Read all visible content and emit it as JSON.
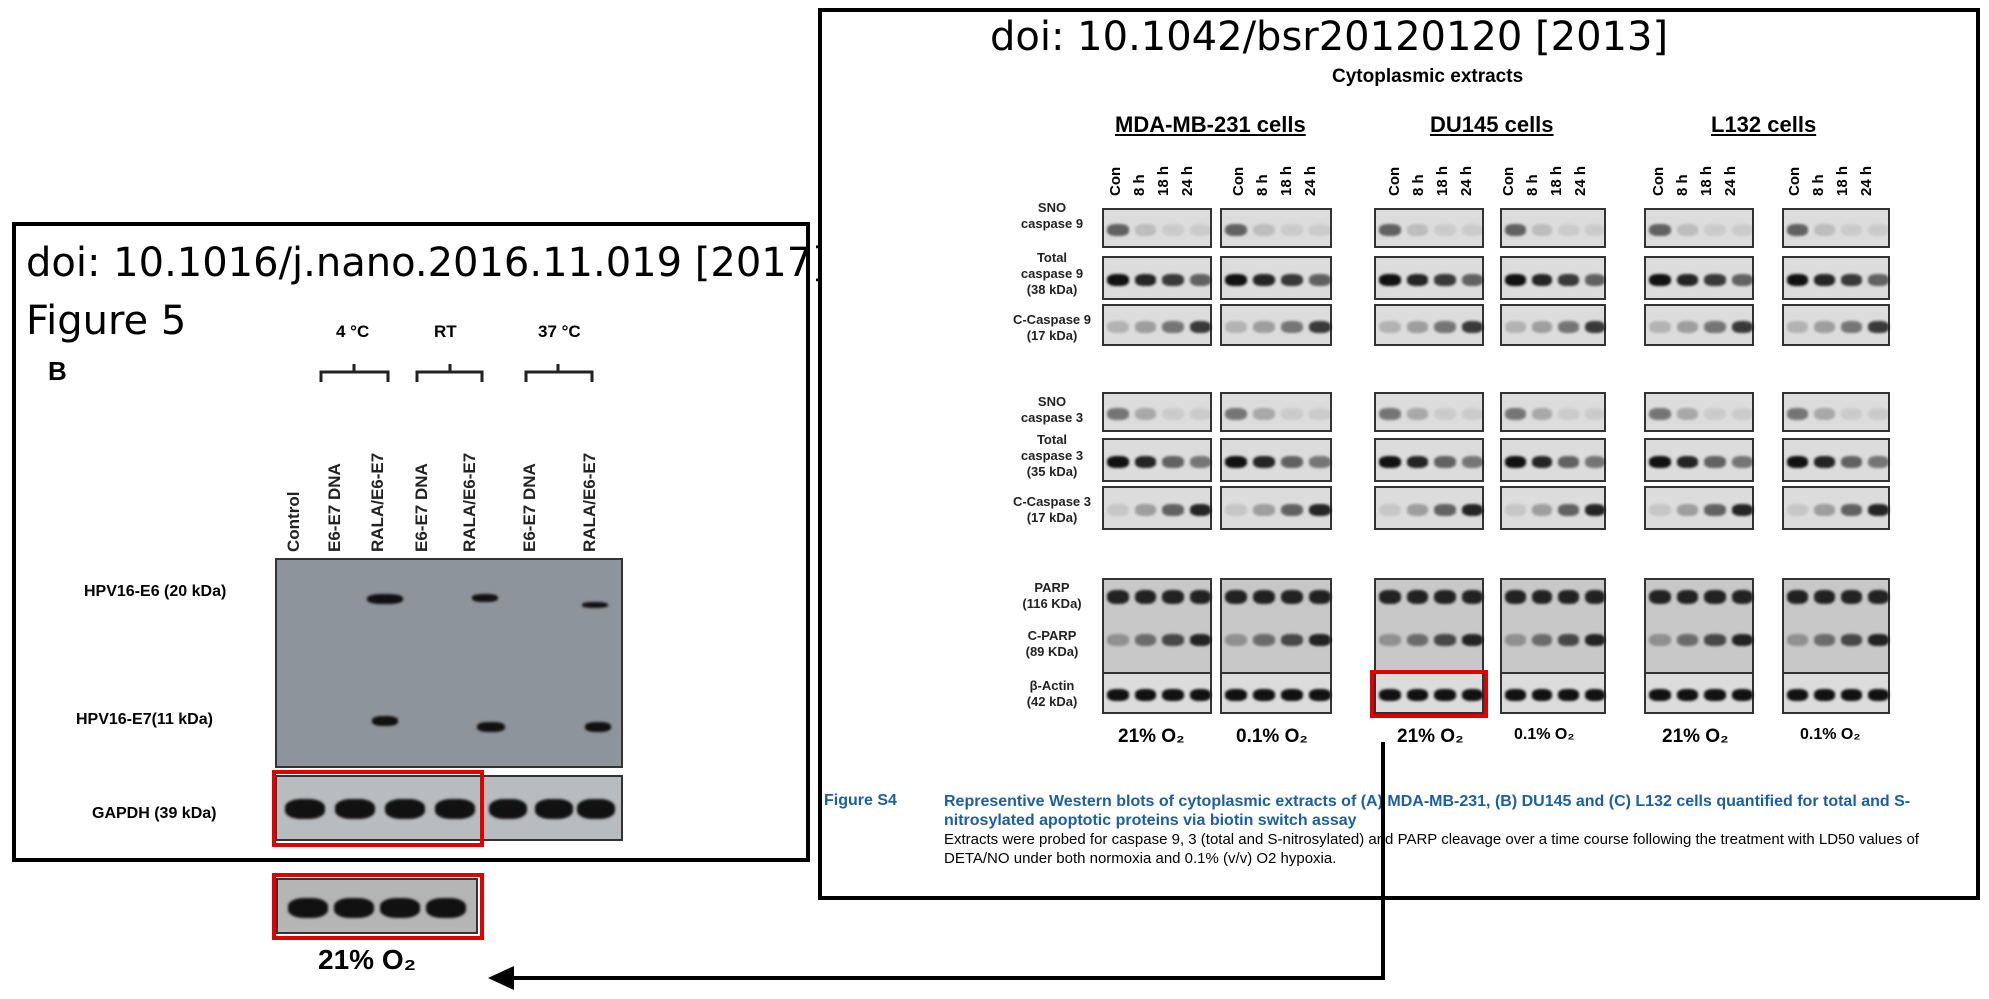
{
  "left_panel": {
    "doi": "doi: 10.1016/j.nano.2016.11.019 [2017]",
    "figure": "Figure 5",
    "panel_letter": "B",
    "groups": [
      "4 °C",
      "RT",
      "37 °C"
    ],
    "lanes": [
      "Control",
      "E6-E7 DNA",
      "RALA/E6-E7",
      "E6-E7 DNA",
      "RALA/E6-E7",
      "E6-E7 DNA",
      "RALA/E6-E7"
    ],
    "rows": [
      "HPV16-E6 (20 kDa)",
      "HPV16-E7(11 kDa)",
      "GAPDH (39 kDa)"
    ]
  },
  "right_panel": {
    "doi": "doi: 10.1042/bsr20120120 [2013]",
    "heading": "Cytoplasmic extracts",
    "cells": [
      "MDA-MB-231 cells",
      "DU145 cells",
      "L132 cells"
    ],
    "lanes": [
      "Con",
      "8 h",
      "18 h",
      "24 h"
    ],
    "row_labels": [
      [
        "SNO",
        "caspase 9"
      ],
      [
        "Total",
        "caspase 9",
        "(38 kDa)"
      ],
      [
        "C-Caspase 9",
        "(17 kDa)"
      ],
      [
        "SNO",
        "caspase 3"
      ],
      [
        "Total",
        "caspase 3",
        "(35 kDa)"
      ],
      [
        "C-Caspase 3",
        "(17 kDa)"
      ],
      [
        "PARP",
        "(116 KDa)"
      ],
      [
        "C-PARP",
        "(89 KDa)"
      ],
      [
        "β-Actin",
        "(42 kDa)"
      ]
    ],
    "o2_labels": [
      "21% O₂",
      "0.1% O₂",
      "21% O₂",
      "0.1% O₂",
      "21% O₂",
      "0.1% O₂"
    ],
    "caption_label": "Figure S4",
    "caption_title": "Representive Western blots of cytoplasmic extracts of (A) MDA-MB-231, (B) DU145 and (C) L132 cells quantified for total and S-nitrosylated apoptotic proteins via biotin switch assay",
    "caption_body": "Extracts were probed for caspase 9, 3 (total and S-nitrosylated) and PARP cleavage over a time course following the treatment with LD50 values of DETA/NO under both normoxia and 0.1% (v/v) O2 hypoxia."
  },
  "extracted": {
    "label": "21% O₂"
  }
}
